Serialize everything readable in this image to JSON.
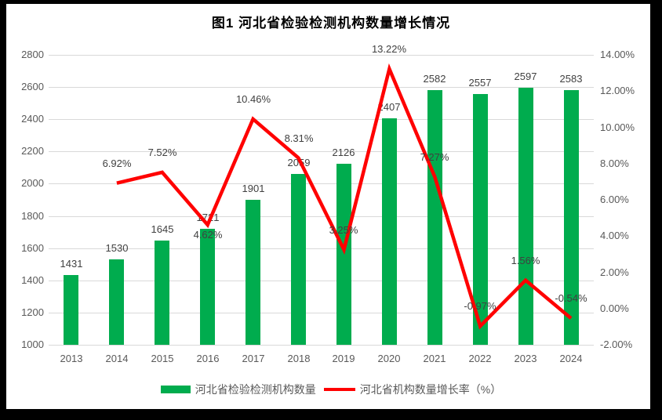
{
  "title": "图1 河北省检验检测机构数量增长情况",
  "colors": {
    "bar": "#00AC4E",
    "line": "#FF0000",
    "grid": "#D9D9D9",
    "axis_text": "#595959",
    "label_text": "#404040",
    "title_text": "#000000",
    "legend_text": "#595959",
    "frame": "#000000",
    "background": "#FFFFFF"
  },
  "legend": [
    {
      "label": "河北省检验检测机构数量",
      "type": "bar"
    },
    {
      "label": "河北省机构数量增长率（%）",
      "type": "line"
    }
  ],
  "chart_data": {
    "type": "combo-bar-line",
    "title": "图1 河北省检验检测机构数量增长情况",
    "categories": [
      "2013",
      "2014",
      "2015",
      "2016",
      "2017",
      "2018",
      "2019",
      "2020",
      "2021",
      "2022",
      "2023",
      "2024"
    ],
    "series": [
      {
        "name": "河北省检验检测机构数量",
        "type": "bar",
        "axis": "left",
        "values": [
          1431,
          1530,
          1645,
          1721,
          1901,
          2059,
          2126,
          2407,
          2582,
          2557,
          2597,
          2583
        ],
        "labels": [
          "1431",
          "1530",
          "1645",
          "1721",
          "1901",
          "2059",
          "2126",
          "2407",
          "2582",
          "2557",
          "2597",
          "2583"
        ]
      },
      {
        "name": "河北省机构数量增长率（%）",
        "type": "line",
        "axis": "right",
        "values": [
          null,
          6.92,
          7.52,
          4.62,
          10.46,
          8.31,
          3.25,
          13.22,
          7.27,
          -0.97,
          1.56,
          -0.54
        ],
        "labels": [
          null,
          "6.92%",
          "7.52%",
          "4.62%",
          "10.46%",
          "8.31%",
          "3.25%",
          "13.22%",
          "7.27%",
          "-0.97%",
          "1.56%",
          "-0.54%"
        ],
        "label_positions": [
          null,
          "above",
          "above",
          "below",
          "above",
          "above",
          "above",
          "above",
          "above",
          "above",
          "above",
          "above"
        ]
      }
    ],
    "left_axis": {
      "min": 1000,
      "max": 2800,
      "step": 200,
      "ticks": [
        "1000",
        "1200",
        "1400",
        "1600",
        "1800",
        "2000",
        "2200",
        "2400",
        "2600",
        "2800"
      ]
    },
    "right_axis": {
      "min": -2,
      "max": 14,
      "step": 2,
      "ticks": [
        "-2.00%",
        "0.00%",
        "2.00%",
        "4.00%",
        "6.00%",
        "8.00%",
        "10.00%",
        "12.00%",
        "14.00%"
      ]
    },
    "grid": true,
    "legend_position": "bottom"
  }
}
